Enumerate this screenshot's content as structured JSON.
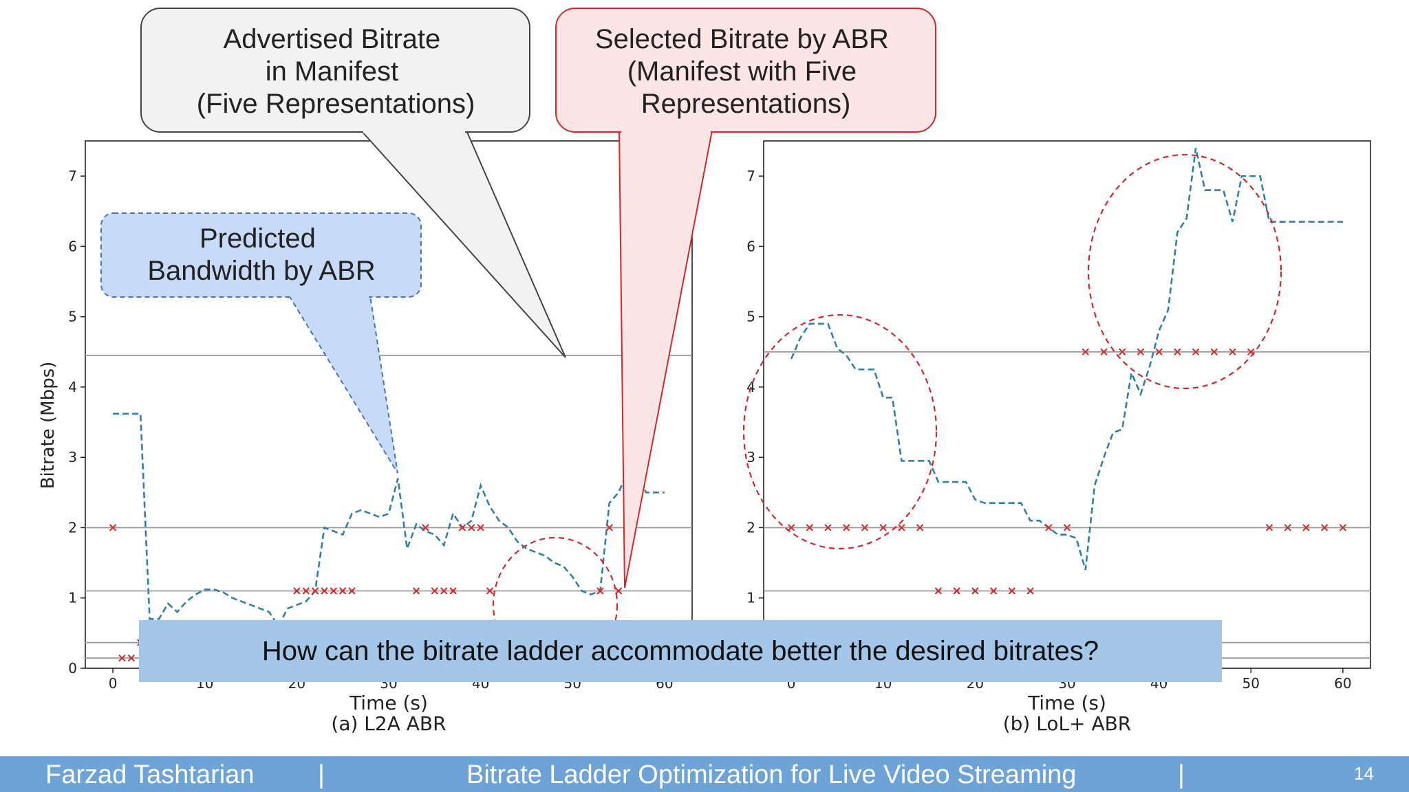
{
  "slide": {
    "author": "Farzad Tashtarian",
    "separator": "|",
    "title": "Bitrate Ladder Optimization for Live Video Streaming",
    "page": "14",
    "question": "How can the bitrate ladder accommodate better the desired bitrates?"
  },
  "callouts": {
    "advertised": [
      "Advertised Bitrate",
      "in Manifest",
      "(Five Representations)"
    ],
    "selected": [
      "Selected Bitrate by ABR",
      "(Manifest with Five",
      "Representations)"
    ],
    "predicted": [
      "Predicted",
      "Bandwidth by ABR"
    ]
  },
  "colors": {
    "predicted": "#2f7fab",
    "selected": "#d62728",
    "ladder": "#9a9a9a",
    "footer": "#6ea3d8",
    "question_band": "#a4c6e9",
    "callout_gray": "#f2f2f2",
    "callout_red": "#fbe5e5",
    "callout_blue": "#c7daf7"
  },
  "chart_data": [
    {
      "type": "line",
      "caption": "(a) L2A ABR",
      "xlabel": "Time (s)",
      "ylabel": "Bitrate (Mbps)",
      "xlim": [
        -3,
        63
      ],
      "ylim": [
        0,
        7.5
      ],
      "xticks": [
        0,
        10,
        20,
        30,
        40,
        50,
        60
      ],
      "yticks": [
        0,
        1,
        2,
        3,
        4,
        5,
        6,
        7
      ],
      "ladder": [
        0.145,
        0.365,
        1.1,
        2.0,
        4.45
      ],
      "predicted": {
        "x": [
          0,
          3,
          4,
          5,
          6,
          7,
          8,
          9,
          10,
          11,
          12,
          13,
          14,
          15,
          16,
          17,
          18,
          19,
          20,
          21,
          22,
          23,
          24,
          25,
          26,
          27,
          28,
          29,
          30,
          31,
          32,
          33,
          34,
          35,
          36,
          37,
          38,
          39,
          40,
          41,
          42,
          43,
          44,
          45,
          46,
          47,
          48,
          49,
          50,
          51,
          52,
          53,
          54,
          55,
          56,
          57,
          58,
          59,
          60
        ],
        "y": [
          3.62,
          3.62,
          0.7,
          0.7,
          0.92,
          0.8,
          0.95,
          1.05,
          1.12,
          1.12,
          1.08,
          1.0,
          0.95,
          0.9,
          0.85,
          0.8,
          0.6,
          0.85,
          0.9,
          0.95,
          1.1,
          2.0,
          1.95,
          1.9,
          2.2,
          2.25,
          2.2,
          2.15,
          2.2,
          2.7,
          1.7,
          2.05,
          1.95,
          1.9,
          1.75,
          2.2,
          2.0,
          2.1,
          2.6,
          2.3,
          2.1,
          2.0,
          1.8,
          1.7,
          1.65,
          1.6,
          1.5,
          1.45,
          1.3,
          1.1,
          1.05,
          1.1,
          2.35,
          2.5,
          2.8,
          2.75,
          2.5,
          2.5,
          2.5
        ]
      },
      "selected": {
        "x": [
          0,
          1,
          2,
          3,
          4,
          5,
          6,
          7,
          8,
          9,
          10,
          11,
          12,
          13,
          14,
          15,
          16,
          17,
          18,
          19,
          20,
          21,
          22,
          23,
          24,
          25,
          26,
          33,
          34,
          35,
          36,
          37,
          38,
          39,
          40,
          41,
          53,
          54,
          55
        ],
        "y": [
          2.0,
          0.145,
          0.145,
          0.365,
          0.365,
          0.365,
          0.365,
          0.365,
          0.365,
          0.365,
          0.365,
          0.365,
          0.365,
          0.365,
          0.365,
          0.365,
          0.365,
          0.365,
          0.365,
          0.365,
          1.1,
          1.1,
          1.1,
          1.1,
          1.1,
          1.1,
          1.1,
          1.1,
          2.0,
          1.1,
          1.1,
          1.1,
          2.0,
          2.0,
          2.0,
          1.1,
          1.1,
          2.0,
          1.1
        ]
      }
    },
    {
      "type": "line",
      "caption": "(b) LoL+ ABR",
      "xlabel": "Time (s)",
      "ylabel": "",
      "xlim": [
        -3,
        63
      ],
      "ylim": [
        0,
        7.5
      ],
      "xticks": [
        0,
        10,
        20,
        30,
        40,
        50,
        60
      ],
      "yticks": [
        0,
        1,
        2,
        3,
        4,
        5,
        6,
        7
      ],
      "ladder": [
        0.145,
        0.365,
        1.1,
        2.0,
        4.5
      ],
      "predicted": {
        "x": [
          0,
          1,
          2,
          3,
          4,
          5,
          6,
          7,
          8,
          9,
          10,
          11,
          12,
          13,
          14,
          15,
          16,
          17,
          18,
          19,
          20,
          21,
          22,
          23,
          24,
          25,
          26,
          27,
          28,
          29,
          30,
          31,
          32,
          33,
          34,
          35,
          36,
          37,
          38,
          39,
          40,
          41,
          42,
          43,
          44,
          45,
          46,
          47,
          48,
          49,
          50,
          51,
          52,
          53,
          54,
          55,
          56,
          57,
          58,
          59,
          60
        ],
        "y": [
          4.4,
          4.7,
          4.9,
          4.9,
          4.9,
          4.55,
          4.45,
          4.25,
          4.25,
          4.25,
          3.85,
          3.85,
          2.95,
          2.95,
          2.95,
          2.95,
          2.65,
          2.65,
          2.65,
          2.65,
          2.4,
          2.35,
          2.35,
          2.35,
          2.35,
          2.35,
          2.1,
          2.1,
          2.0,
          1.9,
          1.9,
          1.85,
          1.4,
          2.6,
          3.0,
          3.35,
          3.4,
          4.2,
          3.9,
          4.3,
          4.8,
          5.1,
          6.2,
          6.4,
          7.4,
          6.8,
          6.8,
          6.8,
          6.35,
          7.0,
          7.0,
          7.0,
          6.35,
          6.35,
          6.35,
          6.35,
          6.35,
          6.35,
          6.35,
          6.35,
          6.35
        ]
      },
      "selected": {
        "x": [
          0,
          2,
          4,
          6,
          8,
          10,
          12,
          14,
          16,
          18,
          20,
          22,
          24,
          26,
          28,
          30,
          32,
          34,
          36,
          38,
          40,
          42,
          44,
          46,
          48,
          50,
          52,
          54,
          56,
          58,
          60
        ],
        "y": [
          2.0,
          2.0,
          2.0,
          2.0,
          2.0,
          2.0,
          2.0,
          2.0,
          1.1,
          1.1,
          1.1,
          1.1,
          1.1,
          1.1,
          2.0,
          2.0,
          4.5,
          4.5,
          4.5,
          4.5,
          4.5,
          4.5,
          4.5,
          4.5,
          4.5,
          4.5,
          2.0,
          2.0,
          2.0,
          2.0,
          2.0
        ]
      }
    }
  ]
}
